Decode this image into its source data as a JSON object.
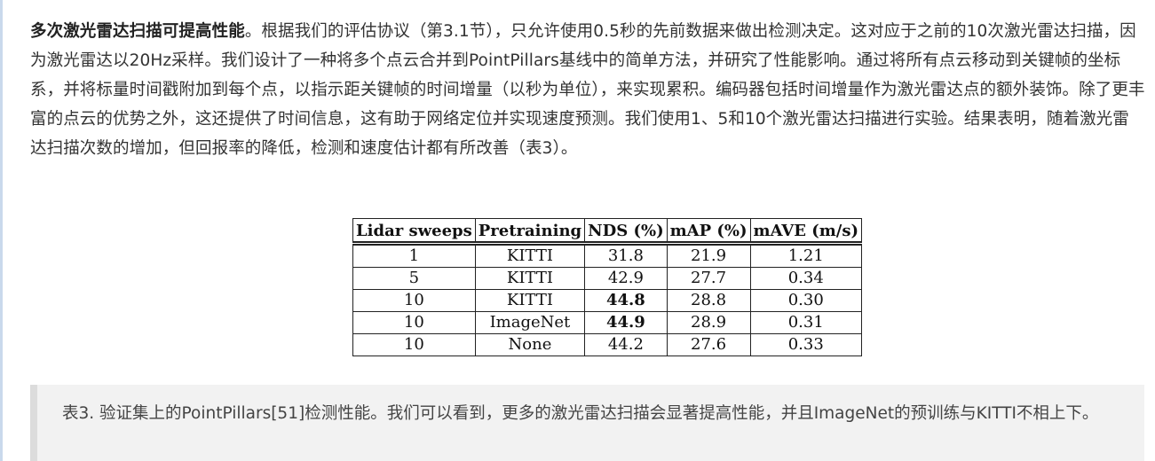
{
  "paragraph": {
    "bold_lead": "多次激光雷达扫描可提高性能",
    "body": "。根据我们的评估协议（第3.1节），只允许使用0.5秒的先前数据来做出检测决定。这对应于之前的10次激光雷达扫描，因为激光雷达以20Hz采样。我们设计了一种将多个点云合并到PointPillars基线中的简单方法，并研究了性能影响。通过将所有点云移动到关键帧的坐标系，并将标量时间戳附加到每个点，以指示距关键帧的时间增量（以秒为单位），来实现累积。编码器包括时间增量作为激光雷达点的额外装饰。除了更丰富的点云的优势之外，这还提供了时间信息，这有助于网络定位并实现速度预测。我们使用1、5和10个激光雷达扫描进行实验。结果表明，随着激光雷达扫描次数的增加，但回报率的降低，检测和速度估计都有所改善（表3）。"
  },
  "table": {
    "headers": [
      "Lidar sweeps",
      "Pretraining",
      "NDS (%)",
      "mAP (%)",
      "mAVE (m/s)"
    ],
    "rows": [
      [
        "1",
        "KITTI",
        "31.8",
        "21.9",
        "1.21"
      ],
      [
        "5",
        "KITTI",
        "42.9",
        "27.7",
        "0.34"
      ],
      [
        "10",
        "KITTI",
        "44.8",
        "28.8",
        "0.30"
      ],
      [
        "10",
        "ImageNet",
        "44.9",
        "28.9",
        "0.31"
      ],
      [
        "10",
        "None",
        "44.2",
        "27.6",
        "0.33"
      ]
    ]
  },
  "caption": {
    "text": "表3. 验证集上的PointPillars[51]检测性能。我们可以看到，更多的激光雷达扫描会显著提高性能，并且ImageNet的预训练与KITTI不相上下。"
  }
}
